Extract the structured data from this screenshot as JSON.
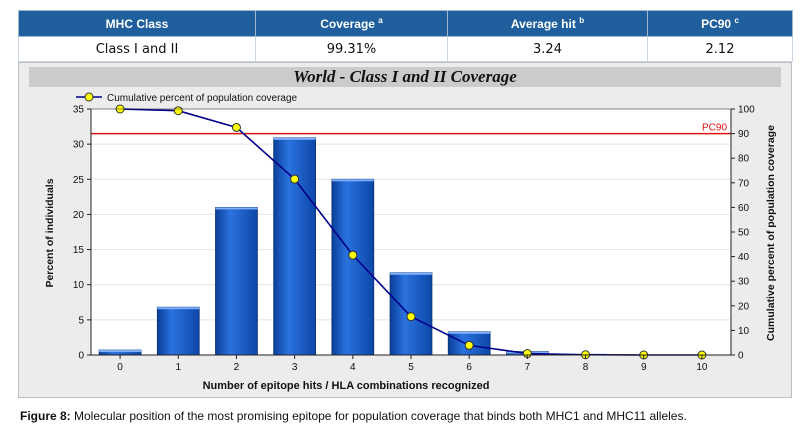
{
  "summary_table": {
    "headers": [
      {
        "label": "MHC Class",
        "note": ""
      },
      {
        "label": "Coverage",
        "note": "a"
      },
      {
        "label": "Average hit",
        "note": "b"
      },
      {
        "label": "PC90",
        "note": "c"
      }
    ],
    "row": [
      "Class I and II",
      "99.31%",
      "3.24",
      "2.12"
    ]
  },
  "chart_data": {
    "type": "bar",
    "title": "World - Class I and II Coverage",
    "xlabel": "Number of epitope hits / HLA combinations recognized",
    "ylabel": "Percent of individuals",
    "y2label": "Cumulative percent of population coverage",
    "categories": [
      "0",
      "1",
      "2",
      "3",
      "4",
      "5",
      "6",
      "7",
      "8",
      "9",
      "10"
    ],
    "ylim": [
      0,
      35
    ],
    "yticks": [
      "0",
      "5",
      "10",
      "15",
      "20",
      "25",
      "30",
      "35"
    ],
    "y2lim": [
      0,
      100
    ],
    "y2ticks": [
      "0",
      "10",
      "20",
      "30",
      "40",
      "50",
      "60",
      "70",
      "80",
      "90",
      "100"
    ],
    "series": [
      {
        "name": "",
        "axis": "left",
        "type": "bar",
        "values": [
          0.7,
          6.8,
          21.0,
          30.9,
          25.0,
          11.7,
          3.3,
          0.5,
          0.1,
          0.0,
          0.0
        ]
      },
      {
        "name": "Cumulative percent of population coverage",
        "axis": "right",
        "type": "line",
        "values": [
          100,
          99.3,
          92.5,
          71.5,
          40.6,
          15.6,
          3.9,
          0.6,
          0.1,
          0.0,
          0.0
        ]
      }
    ],
    "reference_line": {
      "label": "PC90",
      "value": 90,
      "axis": "right"
    },
    "legend_position": "top-left",
    "colors": {
      "bar": "#1b5cc4",
      "line": "#00008b",
      "marker": "#ffff00",
      "reference": "#e01010"
    }
  },
  "caption": {
    "label": "Figure 8:",
    "text": "Molecular position of the most promising epitope for population coverage that binds both MHC1 and MHC11 alleles."
  }
}
